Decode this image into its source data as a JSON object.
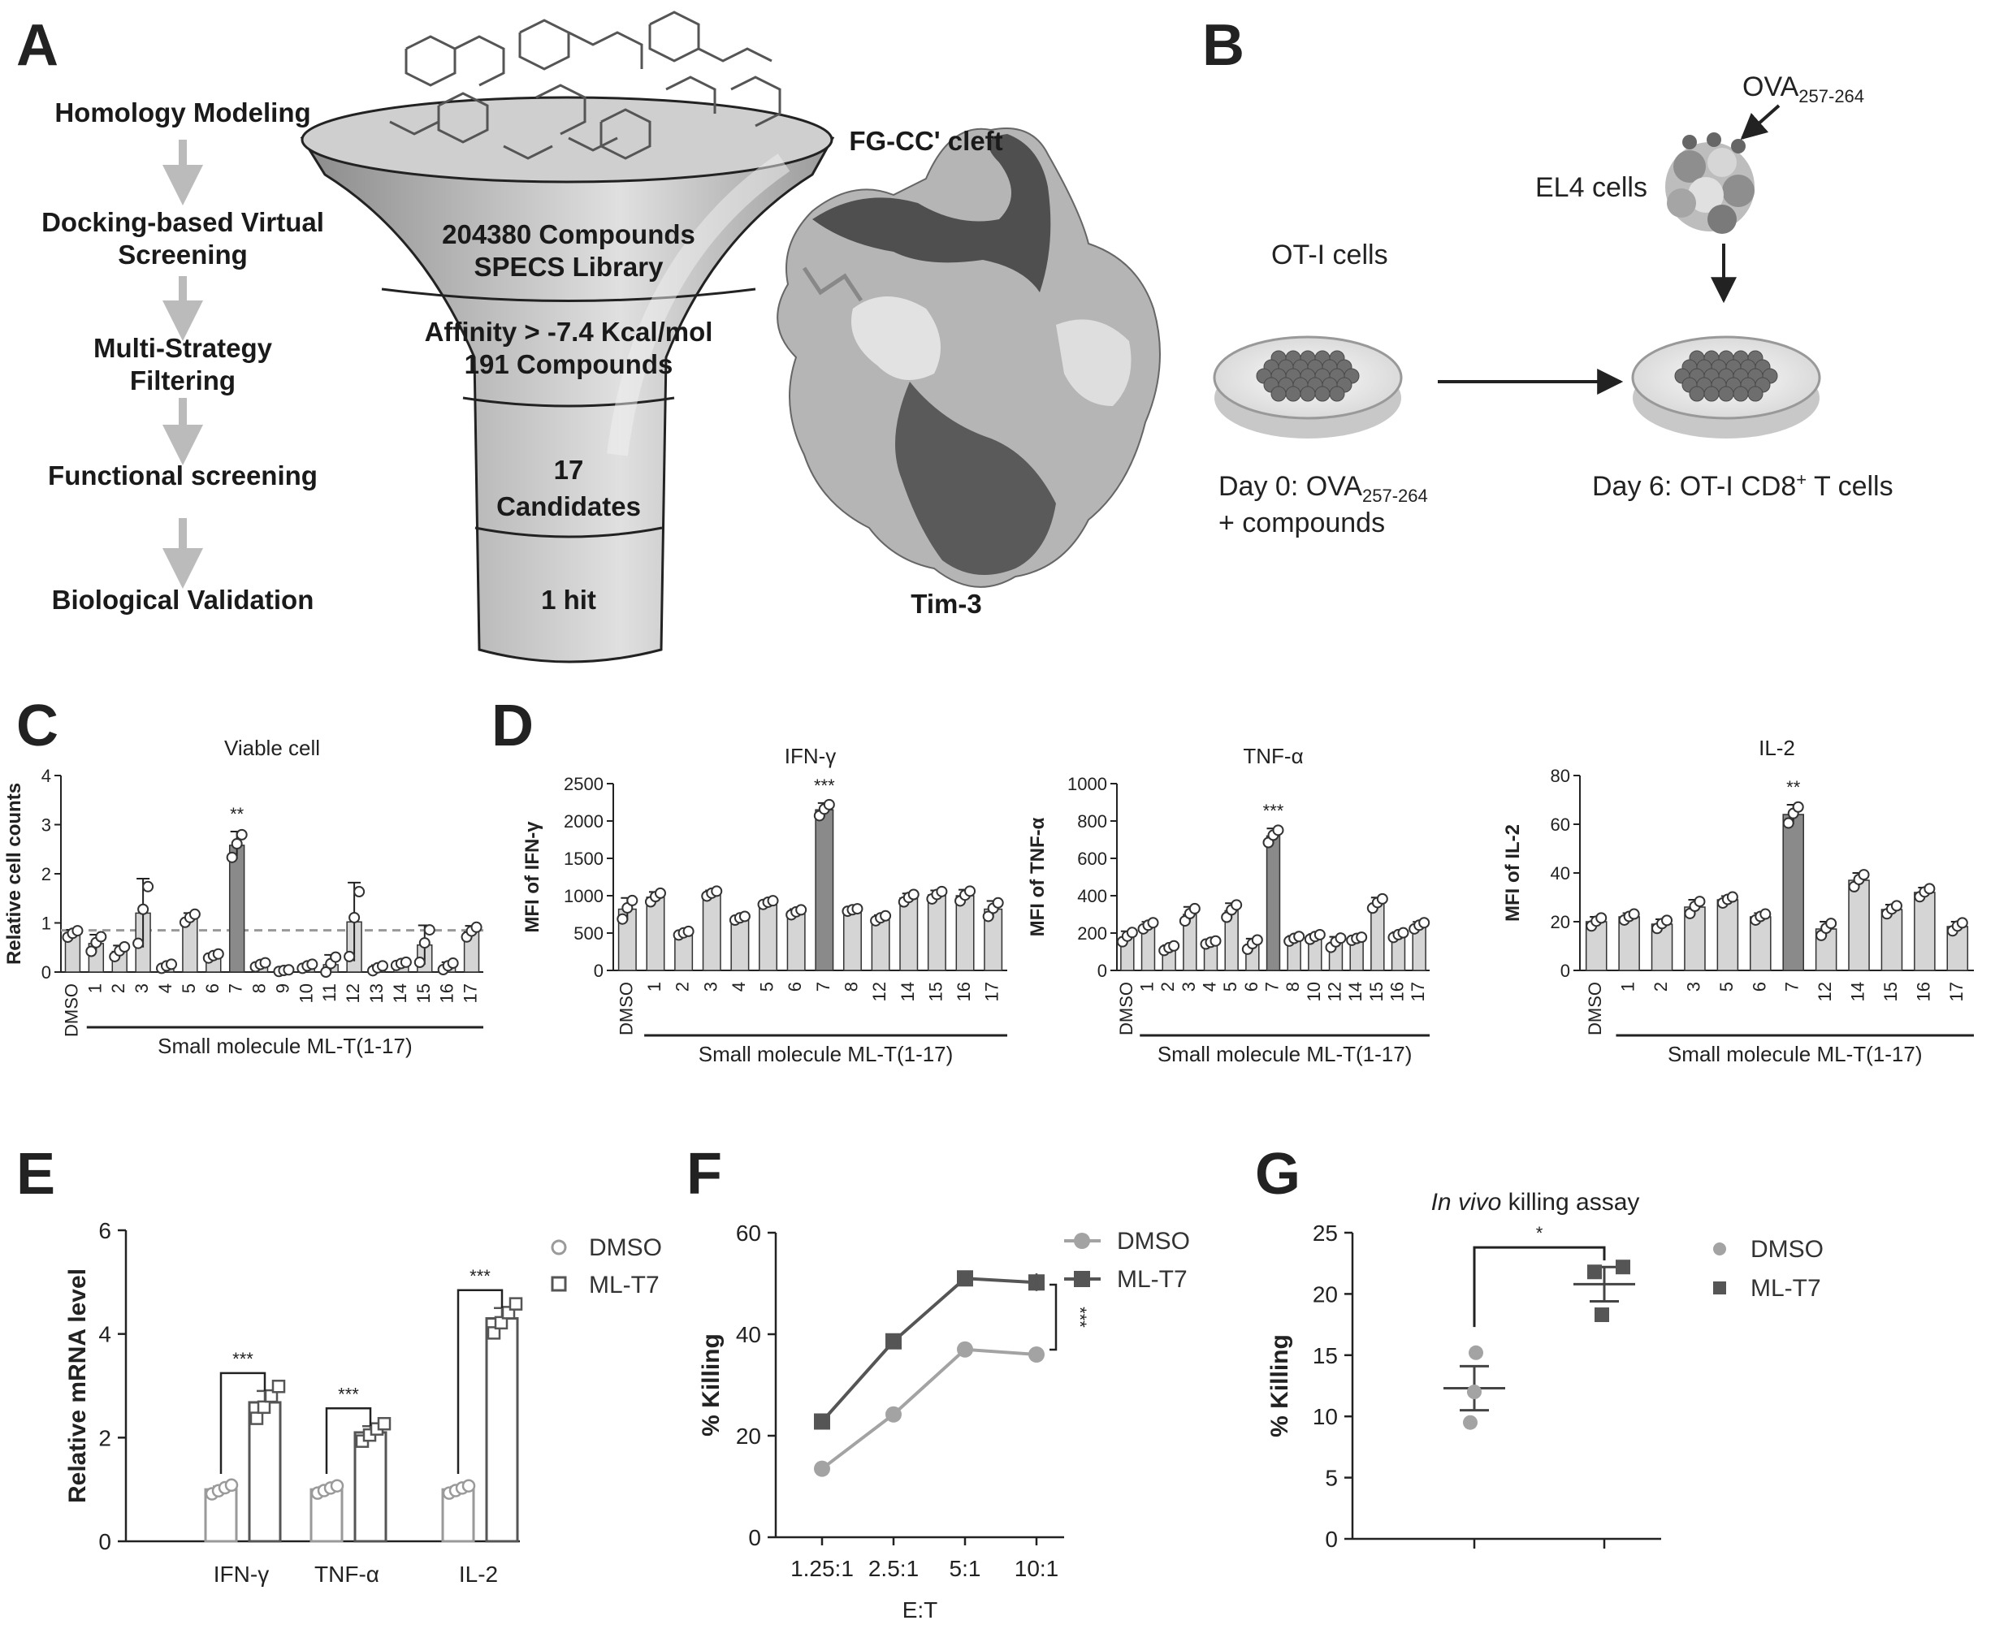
{
  "panel_A": {
    "label": "A",
    "steps": [
      "Homology Modeling",
      "Docking-based Virtual",
      "Screening",
      "Multi-Strategy",
      "Filtering",
      "Functional screening",
      "Biological Validation"
    ],
    "funnel": {
      "tier1": [
        "204380 Compounds",
        "SPECS Library"
      ],
      "tier2": [
        "Affinity > -7.4 Kcal/mol",
        "191 Compounds"
      ],
      "tier3": [
        "17",
        "Candidates"
      ],
      "tier4": "1 hit"
    },
    "protein_top_label": "FG-CC' cleft",
    "protein_bottom_label": "Tim-3"
  },
  "panel_B": {
    "label": "B",
    "peptide": "OVA",
    "peptide_sub": "257-264",
    "el4": "EL4 cells",
    "oti": "OT-I cells",
    "day0_a": "Day 0: OVA",
    "day0_sub": "257-264",
    "day0_b": "+ compounds",
    "day6": "Day 6: OT-I CD8",
    "day6_sup": "+",
    "day6_end": " T cells"
  },
  "chart_data": [
    {
      "id": "C",
      "label": "C",
      "type": "bar",
      "title": "Viable cell",
      "ylabel": "Relative cell counts",
      "xgroup": "Small molecule ML-T(1-17)",
      "ylim": [
        0,
        4
      ],
      "yticks": [
        0,
        1,
        2,
        3,
        4
      ],
      "categories": [
        "DMSO",
        "1",
        "2",
        "3",
        "4",
        "5",
        "6",
        "7",
        "8",
        "9",
        "10",
        "11",
        "12",
        "13",
        "14",
        "15",
        "16",
        "17"
      ],
      "values": [
        0.78,
        0.58,
        0.42,
        1.2,
        0.12,
        1.1,
        0.33,
        2.58,
        0.15,
        0.03,
        0.12,
        0.15,
        1.02,
        0.08,
        0.17,
        0.55,
        0.12,
        0.82
      ],
      "errors": [
        0.08,
        0.18,
        0.12,
        0.7,
        0.05,
        0.1,
        0.05,
        0.28,
        0.05,
        0.02,
        0.05,
        0.2,
        0.8,
        0.06,
        0.04,
        0.4,
        0.08,
        0.12
      ],
      "highlight": 7,
      "reference_line": 0.85,
      "annotation": {
        "index": 7,
        "text": "**"
      }
    },
    {
      "id": "D1",
      "label": "D",
      "type": "bar",
      "title": "IFN-γ",
      "ylabel": "MFI of IFN-γ",
      "xgroup": "Small molecule ML-T(1-17)",
      "ylim": [
        0,
        2500
      ],
      "yticks": [
        0,
        500,
        1000,
        1500,
        2000,
        2500
      ],
      "categories": [
        "DMSO",
        "1",
        "2",
        "3",
        "4",
        "5",
        "6",
        "7",
        "8",
        "12",
        "14",
        "15",
        "16",
        "17"
      ],
      "values": [
        820,
        980,
        500,
        1030,
        700,
        910,
        780,
        2150,
        810,
        700,
        970,
        1010,
        1000,
        820
      ],
      "errors": [
        150,
        70,
        30,
        40,
        30,
        30,
        40,
        90,
        20,
        40,
        60,
        60,
        80,
        110
      ],
      "highlight": 7,
      "annotation": {
        "index": 7,
        "text": "***"
      }
    },
    {
      "id": "D2",
      "type": "bar",
      "title": "TNF-α",
      "ylabel": "MFI of TNF-α",
      "xgroup": "Small molecule ML-T(1-17)",
      "ylim": [
        0,
        1000
      ],
      "yticks": [
        0,
        200,
        400,
        600,
        800,
        1000
      ],
      "categories": [
        "DMSO",
        "1",
        "2",
        "3",
        "4",
        "5",
        "6",
        "7",
        "8",
        "10",
        "12",
        "14",
        "15",
        "16",
        "17"
      ],
      "values": [
        180,
        240,
        120,
        300,
        150,
        320,
        140,
        720,
        170,
        180,
        150,
        170,
        360,
        190,
        240
      ],
      "errors": [
        30,
        20,
        15,
        40,
        10,
        40,
        30,
        40,
        15,
        15,
        30,
        10,
        30,
        15,
        20
      ],
      "highlight": 7,
      "annotation": {
        "index": 7,
        "text": "***"
      }
    },
    {
      "id": "D3",
      "type": "bar",
      "title": "IL-2",
      "ylabel": "MFI of IL-2",
      "xgroup": "Small molecule ML-T(1-17)",
      "ylim": [
        0,
        80
      ],
      "yticks": [
        0,
        20,
        40,
        60,
        80
      ],
      "categories": [
        "DMSO",
        "1",
        "2",
        "3",
        "5",
        "6",
        "7",
        "12",
        "14",
        "15",
        "16",
        "17"
      ],
      "values": [
        20,
        22,
        19,
        26,
        29,
        22,
        64,
        17,
        37,
        25,
        32,
        18
      ],
      "errors": [
        2,
        1.5,
        2,
        3,
        1.5,
        1.5,
        4,
        3,
        3,
        2,
        2,
        2
      ],
      "highlight": 6,
      "annotation": {
        "index": 6,
        "text": "**"
      }
    },
    {
      "id": "E",
      "label": "E",
      "type": "bar",
      "ylabel": "Relative mRNA level",
      "ylim": [
        0,
        6
      ],
      "yticks": [
        0,
        2,
        4,
        6
      ],
      "categories": [
        "IFN-γ",
        "TNF-α",
        "IL-2"
      ],
      "series": [
        {
          "name": "DMSO",
          "values": [
            1.0,
            1.0,
            1.0
          ],
          "errors": [
            0.06,
            0.05,
            0.05
          ]
        },
        {
          "name": "ML-T7",
          "values": [
            2.68,
            2.1,
            4.3
          ],
          "errors": [
            0.22,
            0.12,
            0.2
          ]
        }
      ],
      "annotations": [
        "***",
        "***",
        "***"
      ]
    },
    {
      "id": "F",
      "label": "F",
      "type": "line",
      "ylabel": "% Killing",
      "xlabel": "E:T",
      "ylim": [
        0,
        60
      ],
      "yticks": [
        0,
        20,
        40,
        60
      ],
      "categories": [
        "1.25:1",
        "2.5:1",
        "5:1",
        "10:1"
      ],
      "series": [
        {
          "name": "DMSO",
          "values": [
            13.5,
            24.2,
            37.0,
            36.0
          ]
        },
        {
          "name": "ML-T7",
          "values": [
            22.8,
            38.6,
            51.0,
            50.2
          ]
        }
      ],
      "annotation": "***"
    },
    {
      "id": "G",
      "label": "G",
      "type": "scatter",
      "title_italic": "In vivo",
      "title_rest": " killing assay",
      "ylabel": "% Killing",
      "ylim": [
        0,
        25
      ],
      "yticks": [
        0,
        5,
        10,
        15,
        20,
        25
      ],
      "series": [
        {
          "name": "DMSO",
          "values": [
            15.2,
            12.0,
            9.5
          ],
          "mean": 12.3,
          "sem": 1.8
        },
        {
          "name": "ML-T7",
          "values": [
            22.2,
            21.8,
            18.3
          ],
          "mean": 20.8,
          "sem": 1.4
        }
      ],
      "annotation": "*"
    }
  ]
}
